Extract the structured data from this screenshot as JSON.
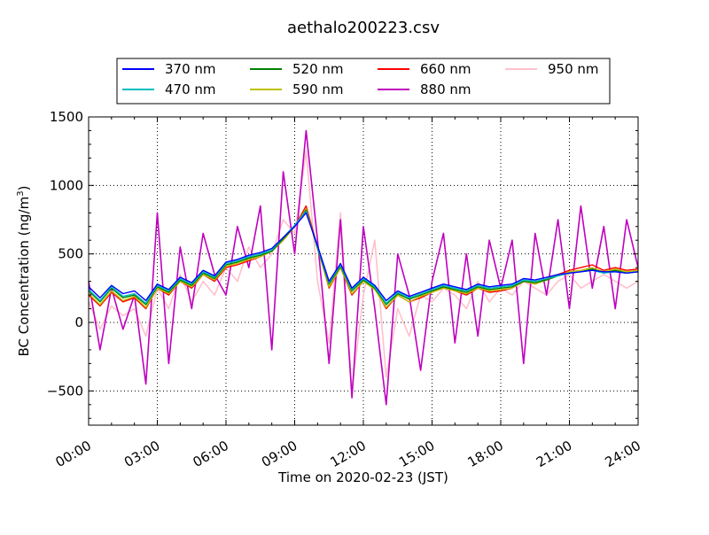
{
  "chart_data": {
    "type": "line",
    "title": "aethalo200223.csv",
    "xlabel": "Time on 2020-02-23 (JST)",
    "ylabel": "BC Concentration (ng/m",
    "ylabel_sup": "3",
    "ylabel_end": ")",
    "xlim": [
      0,
      24
    ],
    "ylim": [
      -750,
      1500
    ],
    "xticks": [
      {
        "hour": 0,
        "label": "00:00"
      },
      {
        "hour": 3,
        "label": "03:00"
      },
      {
        "hour": 6,
        "label": "06:00"
      },
      {
        "hour": 9,
        "label": "09:00"
      },
      {
        "hour": 12,
        "label": "12:00"
      },
      {
        "hour": 15,
        "label": "15:00"
      },
      {
        "hour": 18,
        "label": "18:00"
      },
      {
        "hour": 21,
        "label": "21:00"
      },
      {
        "hour": 24,
        "label": "24:00"
      }
    ],
    "yticks": [
      {
        "value": -500,
        "label": "−500"
      },
      {
        "value": 0,
        "label": "0"
      },
      {
        "value": 500,
        "label": "500"
      },
      {
        "value": 1000,
        "label": "1000"
      },
      {
        "value": 1500,
        "label": "1500"
      }
    ],
    "grid": true,
    "legend_placement": "top, above plot (4 columns)",
    "x": [
      0,
      0.5,
      1,
      1.5,
      2,
      2.5,
      3,
      3.5,
      4,
      4.5,
      5,
      5.5,
      6,
      6.5,
      7,
      7.5,
      8,
      8.5,
      9,
      9.5,
      10,
      10.5,
      11,
      11.5,
      12,
      12.5,
      13,
      13.5,
      14,
      14.5,
      15,
      15.5,
      16,
      16.5,
      17,
      17.5,
      18,
      18.5,
      19,
      19.5,
      20,
      20.5,
      21,
      21.5,
      22,
      22.5,
      23,
      23.5,
      24
    ],
    "series": [
      {
        "name": "950 nm",
        "color": "#ffc0cb",
        "values": [
          150,
          -50,
          120,
          50,
          100,
          -100,
          250,
          100,
          350,
          150,
          300,
          200,
          400,
          300,
          550,
          400,
          500,
          750,
          650,
          1250,
          300,
          -150,
          800,
          -500,
          200,
          600,
          -400,
          100,
          -100,
          200,
          150,
          250,
          200,
          100,
          300,
          150,
          250,
          200,
          300,
          250,
          200,
          300,
          350,
          250,
          300,
          350,
          300,
          250,
          300
        ]
      },
      {
        "name": "880 nm",
        "color": "#bf00bf",
        "values": [
          300,
          -200,
          250,
          -50,
          200,
          -450,
          800,
          -300,
          550,
          100,
          650,
          350,
          200,
          700,
          400,
          850,
          -200,
          1100,
          500,
          1400,
          600,
          -300,
          750,
          -550,
          700,
          100,
          -600,
          500,
          200,
          -350,
          300,
          650,
          -150,
          500,
          -100,
          600,
          250,
          600,
          -300,
          650,
          200,
          750,
          100,
          850,
          250,
          700,
          100,
          750,
          400
        ]
      },
      {
        "name": "660 nm",
        "color": "#ff0000",
        "values": [
          200,
          120,
          220,
          150,
          180,
          100,
          250,
          200,
          300,
          250,
          350,
          300,
          400,
          420,
          450,
          480,
          520,
          600,
          700,
          850,
          550,
          250,
          400,
          200,
          300,
          250,
          100,
          200,
          150,
          180,
          220,
          260,
          230,
          200,
          250,
          220,
          230,
          250,
          300,
          280,
          320,
          350,
          380,
          400,
          420,
          380,
          400,
          380,
          390
        ]
      },
      {
        "name": "590 nm",
        "color": "#bfbf00",
        "values": [
          210,
          130,
          230,
          160,
          190,
          110,
          250,
          210,
          300,
          260,
          350,
          310,
          410,
          430,
          460,
          480,
          520,
          600,
          700,
          830,
          540,
          260,
          400,
          210,
          300,
          240,
          110,
          200,
          150,
          190,
          220,
          250,
          230,
          210,
          250,
          230,
          240,
          250,
          300,
          280,
          310,
          340,
          370,
          380,
          400,
          370,
          390,
          370,
          380
        ]
      },
      {
        "name": "520 nm",
        "color": "#008000",
        "values": [
          230,
          150,
          250,
          180,
          200,
          130,
          260,
          220,
          310,
          270,
          360,
          320,
          420,
          440,
          470,
          490,
          520,
          610,
          700,
          820,
          540,
          280,
          410,
          230,
          310,
          250,
          130,
          210,
          170,
          200,
          230,
          260,
          240,
          220,
          260,
          240,
          250,
          260,
          300,
          290,
          310,
          340,
          360,
          370,
          390,
          360,
          380,
          360,
          370
        ]
      },
      {
        "name": "470 nm",
        "color": "#00bfbf",
        "values": [
          240,
          160,
          260,
          190,
          210,
          140,
          270,
          230,
          320,
          280,
          370,
          330,
          430,
          450,
          480,
          500,
          530,
          620,
          710,
          810,
          550,
          290,
          420,
          240,
          320,
          260,
          140,
          220,
          180,
          210,
          240,
          270,
          250,
          230,
          270,
          250,
          260,
          270,
          310,
          300,
          320,
          340,
          360,
          370,
          380,
          360,
          370,
          360,
          370
        ]
      },
      {
        "name": "370 nm",
        "color": "#0000ff",
        "values": [
          260,
          180,
          270,
          210,
          230,
          160,
          280,
          240,
          330,
          290,
          380,
          340,
          440,
          460,
          490,
          510,
          540,
          620,
          700,
          800,
          560,
          300,
          430,
          250,
          330,
          270,
          160,
          230,
          190,
          220,
          250,
          280,
          260,
          240,
          280,
          260,
          270,
          280,
          320,
          310,
          330,
          350,
          360,
          370,
          380,
          370,
          370,
          360,
          370
        ]
      }
    ],
    "legend_order": [
      "370 nm",
      "470 nm",
      "520 nm",
      "590 nm",
      "660 nm",
      "880 nm",
      "950 nm"
    ]
  }
}
